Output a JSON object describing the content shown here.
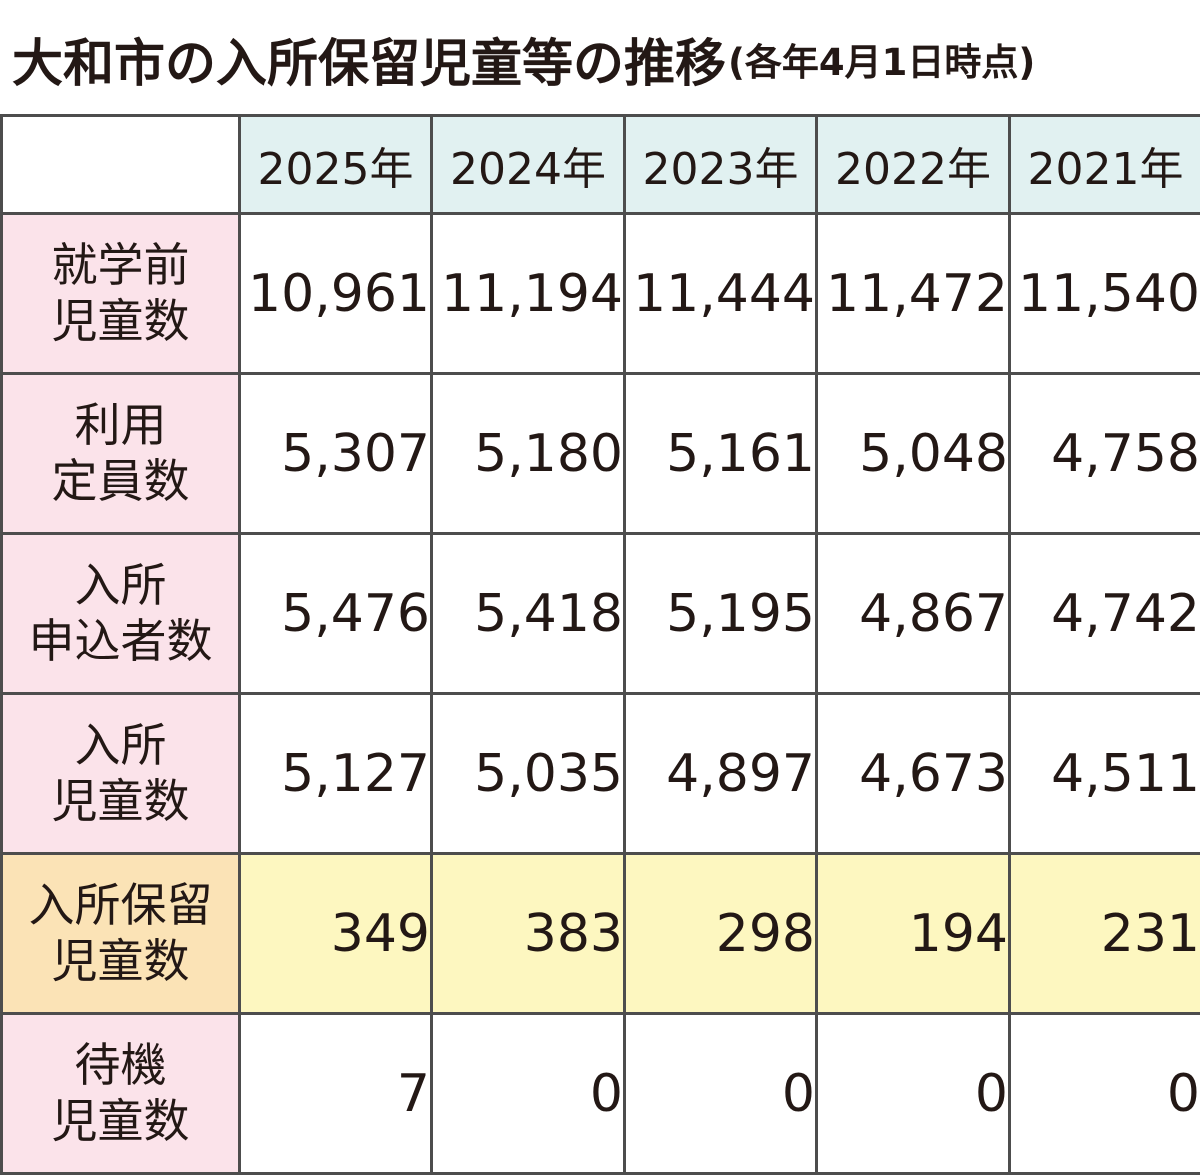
{
  "title": "大和市の入所保留児童等の推移",
  "subtitle": "(各年4月1日時点)",
  "chart_data": {
    "type": "table",
    "title": "大和市の入所保留児童等の推移",
    "subtitle": "(各年4月1日時点)",
    "columns": [
      "2025年",
      "2024年",
      "2023年",
      "2022年",
      "2021年"
    ],
    "rows": [
      {
        "label": [
          "就学前",
          "児童数"
        ],
        "values": [
          "10,961",
          "11,194",
          "11,444",
          "11,472",
          "11,540"
        ]
      },
      {
        "label": [
          "利用",
          "定員数"
        ],
        "values": [
          "5,307",
          "5,180",
          "5,161",
          "5,048",
          "4,758"
        ]
      },
      {
        "label": [
          "入所",
          "申込者数"
        ],
        "values": [
          "5,476",
          "5,418",
          "5,195",
          "4,867",
          "4,742"
        ]
      },
      {
        "label": [
          "入所",
          "児童数"
        ],
        "values": [
          "5,127",
          "5,035",
          "4,897",
          "4,673",
          "4,511"
        ]
      },
      {
        "label": [
          "入所保留",
          "児童数"
        ],
        "values": [
          "349",
          "383",
          "298",
          "194",
          "231"
        ],
        "highlight": true
      },
      {
        "label": [
          "待機",
          "児童数"
        ],
        "values": [
          "7",
          "0",
          "0",
          "0",
          "0"
        ]
      }
    ],
    "colors": {
      "header_bg": "#e1f1f1",
      "row_label_bg": "#fbe3ea",
      "highlight_label_bg": "#fbe3b6",
      "highlight_row_bg": "#fdf7c0",
      "border": "#4d4d4d",
      "text": "#231815"
    }
  }
}
